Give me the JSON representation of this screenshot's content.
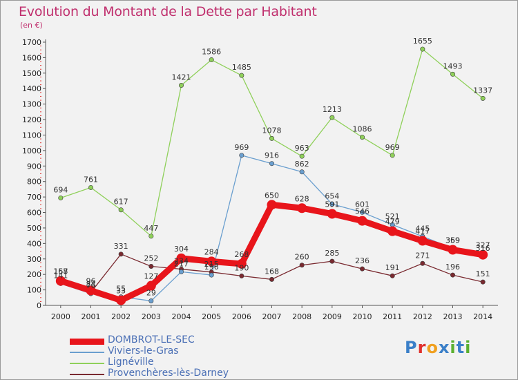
{
  "title": "Evolution du Montant de la Dette par Habitant",
  "unit": "(en €)",
  "logo": {
    "text": "Proxiti",
    "colors": [
      "#3a7fc8",
      "#e0302c",
      "#f0a020",
      "#3a7fc8",
      "#5bb030",
      "#3a7fc8",
      "#5bb030"
    ]
  },
  "chart_data": {
    "type": "line",
    "title": "Evolution du Montant de la Dette par Habitant",
    "ylabel": "(en €)",
    "xlabel": "",
    "x": [
      "2000",
      "2001",
      "2002",
      "2003",
      "2004",
      "2005",
      "2006",
      "2007",
      "2008",
      "2009",
      "2010",
      "2011",
      "2012",
      "2013",
      "2014"
    ],
    "ylim": [
      0,
      1700
    ],
    "yticks": [
      0,
      100,
      200,
      300,
      400,
      500,
      600,
      700,
      800,
      900,
      1000,
      1100,
      1200,
      1300,
      1400,
      1500,
      1600,
      1700
    ],
    "grid": false,
    "legend_position": "bottom-left",
    "series": [
      {
        "name": "DOMBROT-LE-SEC",
        "color": "#e8151b",
        "style": "thick",
        "values": [
          158,
          96,
          33,
          127,
          304,
          284,
          268,
          650,
          628,
          591,
          546,
          479,
          417,
          359,
          327
        ]
      },
      {
        "name": "Viviers-le-Gras",
        "color": "#6a9fcf",
        "style": "thin",
        "values": [
          141,
          76,
          55,
          29,
          217,
          196,
          969,
          916,
          862,
          654,
          601,
          521,
          445,
          369,
          316
        ]
      },
      {
        "name": "Lignéville",
        "color": "#8fd05a",
        "style": "thin",
        "values": [
          694,
          761,
          617,
          447,
          1421,
          1586,
          1485,
          1078,
          963,
          1213,
          1086,
          969,
          1655,
          1493,
          1337
        ]
      },
      {
        "name": "Provenchères-lès-Darney",
        "color": "#7a2a30",
        "style": "thin",
        "values": [
          167,
          84,
          331,
          252,
          234,
          215,
          190,
          168,
          260,
          285,
          236,
          191,
          271,
          196,
          151
        ]
      }
    ]
  }
}
